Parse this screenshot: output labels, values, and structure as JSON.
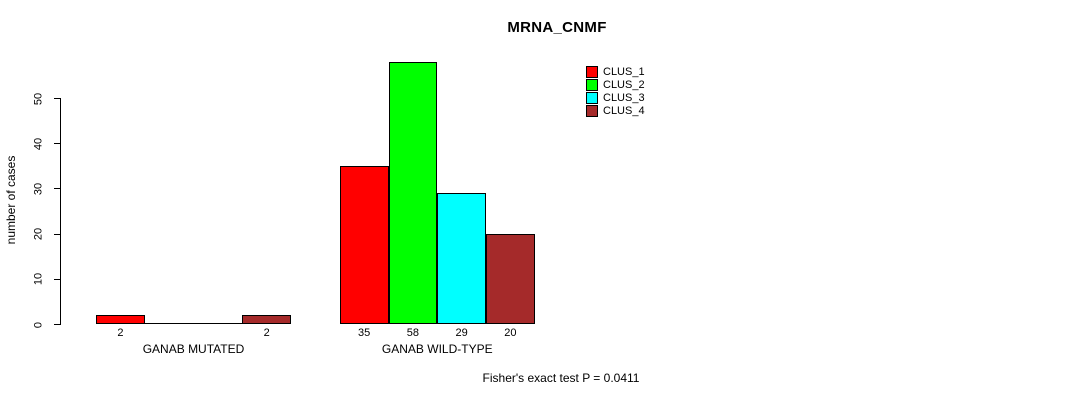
{
  "chart_data": {
    "type": "bar",
    "title": "MRNA_CNMF",
    "xlabel": "",
    "ylabel": "number of cases",
    "yticks": [
      0,
      10,
      20,
      30,
      40,
      50
    ],
    "ylim": [
      0,
      58
    ],
    "grid": false,
    "legend_position": "top-right",
    "categories": [
      "GANAB MUTATED",
      "GANAB WILD-TYPE"
    ],
    "series": [
      {
        "name": "CLUS_1",
        "color": "#FF0000",
        "values": [
          2,
          35
        ]
      },
      {
        "name": "CLUS_2",
        "color": "#00FF00",
        "values": [
          0,
          58
        ]
      },
      {
        "name": "CLUS_3",
        "color": "#00FFFF",
        "values": [
          0,
          29
        ]
      },
      {
        "name": "CLUS_4",
        "color": "#A52A2A",
        "values": [
          2,
          20
        ]
      }
    ],
    "visible_bar_value_labels": [
      "2",
      "2",
      "35",
      "58",
      "29",
      "20"
    ],
    "footnote": "Fisher's exact test P = 0.0411",
    "axis_color": "#000000",
    "background_color": "#FFFFFF"
  }
}
